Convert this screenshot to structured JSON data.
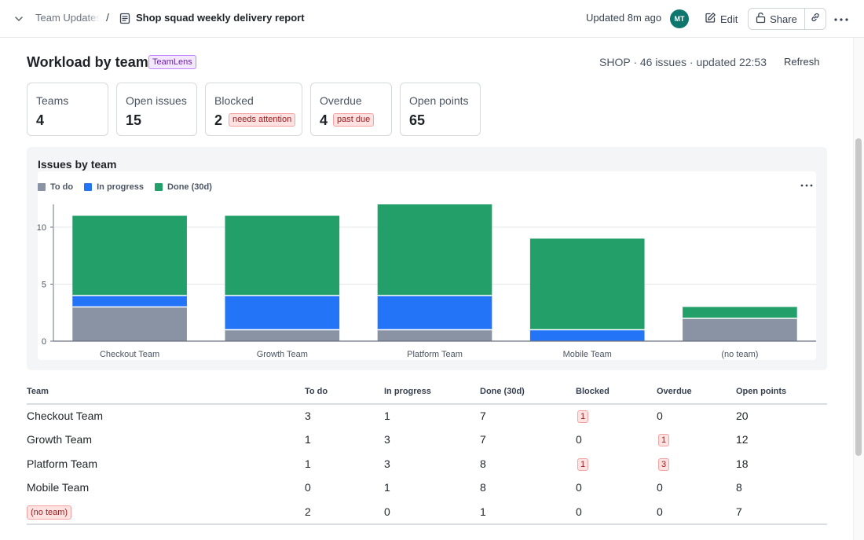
{
  "topbar": {
    "breadcrumb_parent": "Team Updates",
    "breadcrumb_separator": "/",
    "doc_title": "Shop squad weekly delivery report",
    "updated": "Updated 8m ago",
    "avatar_initials": "MT",
    "avatar_color": "#0f766e",
    "edit_label": "Edit",
    "share_label": "Share"
  },
  "header": {
    "title": "Workload by team",
    "app_badge": "TeamLens",
    "meta": "SHOP · 46 issues · updated 22:53",
    "refresh_label": "Refresh"
  },
  "stats": [
    {
      "label": "Teams",
      "value": "4",
      "tag": ""
    },
    {
      "label": "Open issues",
      "value": "15",
      "tag": ""
    },
    {
      "label": "Blocked",
      "value": "2",
      "tag": "needs attention"
    },
    {
      "label": "Overdue",
      "value": "4",
      "tag": "past due"
    },
    {
      "label": "Open points",
      "value": "65",
      "tag": ""
    }
  ],
  "chart_title": "Issues by team",
  "chart_data": {
    "type": "bar",
    "stacked": true,
    "title": "Issues by team",
    "categories": [
      "Checkout Team",
      "Growth Team",
      "Platform Team",
      "Mobile Team",
      "(no team)"
    ],
    "series": [
      {
        "name": "To do",
        "color": "#8a93a3",
        "values": [
          3,
          1,
          1,
          0,
          2
        ]
      },
      {
        "name": "In progress",
        "color": "#2374f7",
        "values": [
          1,
          3,
          3,
          1,
          0
        ]
      },
      {
        "name": "Done (30d)",
        "color": "#23a06a",
        "values": [
          7,
          7,
          8,
          8,
          1
        ]
      }
    ],
    "yticks": [
      0,
      5,
      10
    ],
    "ylim": [
      0,
      12
    ],
    "xlabel": "",
    "ylabel": "",
    "legend_position": "top-left",
    "grid": true
  },
  "table": {
    "headers": [
      "Team",
      "To do",
      "In progress",
      "Done (30d)",
      "Blocked",
      "Overdue",
      "Open points"
    ],
    "rows": [
      {
        "team": "Checkout Team",
        "todo": "3",
        "in_progress": "1",
        "done": "7",
        "blocked": "1",
        "overdue": "0",
        "points": "20",
        "blocked_flag": true,
        "overdue_flag": false,
        "team_flag": false
      },
      {
        "team": "Growth Team",
        "todo": "1",
        "in_progress": "3",
        "done": "7",
        "blocked": "0",
        "overdue": "1",
        "points": "12",
        "blocked_flag": false,
        "overdue_flag": true,
        "team_flag": false
      },
      {
        "team": "Platform Team",
        "todo": "1",
        "in_progress": "3",
        "done": "8",
        "blocked": "1",
        "overdue": "3",
        "points": "18",
        "blocked_flag": true,
        "overdue_flag": true,
        "team_flag": false
      },
      {
        "team": "Mobile Team",
        "todo": "0",
        "in_progress": "1",
        "done": "8",
        "blocked": "0",
        "overdue": "0",
        "points": "8",
        "blocked_flag": false,
        "overdue_flag": false,
        "team_flag": false
      },
      {
        "team": "(no team)",
        "todo": "2",
        "in_progress": "0",
        "done": "1",
        "blocked": "0",
        "overdue": "0",
        "points": "7",
        "blocked_flag": false,
        "overdue_flag": false,
        "team_flag": true
      }
    ]
  }
}
